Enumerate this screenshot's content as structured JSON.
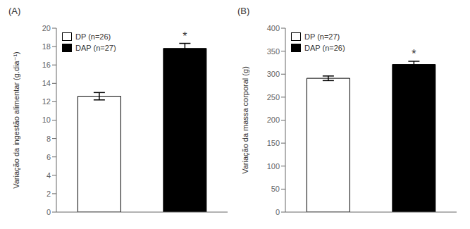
{
  "chart_data": [
    {
      "type": "bar",
      "title": "(A)",
      "ylabel": "Variação da ingestão alimentar (g.dia⁻¹)",
      "categories": [
        null,
        null
      ],
      "series": [
        {
          "name": "DP (n=26)",
          "color": "white",
          "values": [
            12.6,
            null
          ],
          "errors": [
            0.4,
            null
          ]
        },
        {
          "name": "DAP (n=27)",
          "color": "black",
          "values": [
            null,
            17.8
          ],
          "errors": [
            null,
            0.55
          ]
        }
      ],
      "ylim": [
        0,
        20
      ],
      "yticks": [
        0,
        2,
        4,
        6,
        8,
        10,
        12,
        14,
        16,
        18,
        20
      ],
      "annotations": [
        {
          "text": "*",
          "series": "DAP (n=27)"
        }
      ],
      "legend": "upper left",
      "grid": false,
      "tick_labels": "y"
    },
    {
      "type": "bar",
      "title": "(B)",
      "ylabel": "Variação da massa corporal (g)",
      "categories": [
        null,
        null
      ],
      "series": [
        {
          "name": "DP (n=27)",
          "color": "white",
          "values": [
            291,
            null
          ],
          "errors": [
            5,
            null
          ]
        },
        {
          "name": "DAP (n=26)",
          "color": "black",
          "values": [
            null,
            321
          ],
          "errors": [
            null,
            7
          ]
        }
      ],
      "ylim": [
        0,
        400
      ],
      "yticks": [
        0,
        50,
        100,
        150,
        200,
        250,
        300,
        350,
        400
      ],
      "annotations": [
        {
          "text": "*",
          "series": "DAP (n=26)"
        }
      ],
      "legend": "upper left",
      "grid": false,
      "tick_labels": "y"
    }
  ]
}
